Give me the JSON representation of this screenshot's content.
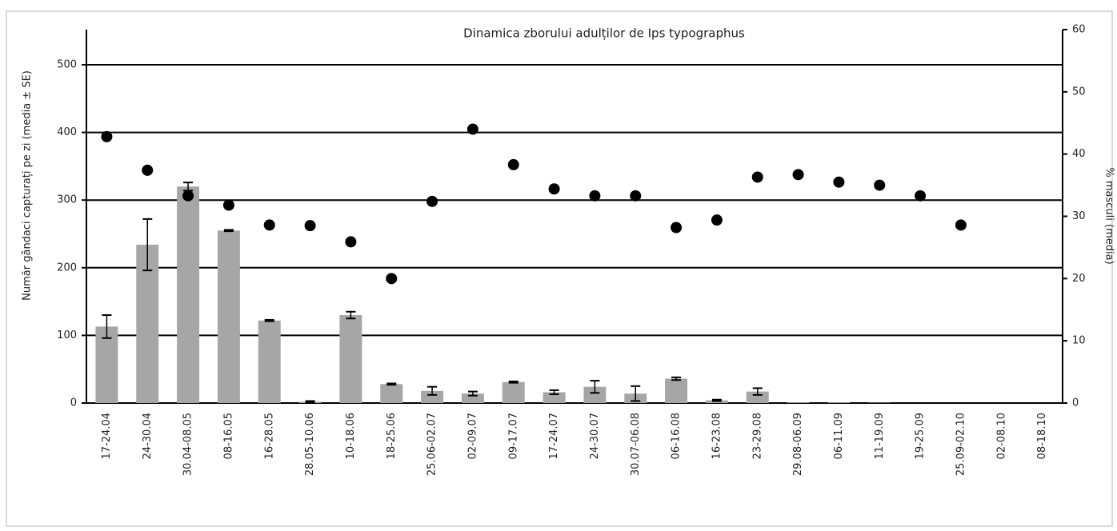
{
  "chart_data": {
    "type": "bar",
    "title": "Dinamica zborului adulților de Ips typographus",
    "y_label": "Număr gândaci capturați pe zi (media ± SE)",
    "y2_label": "% masculi (media)",
    "categories": [
      "17-24.04",
      "24-30.04",
      "30.04-08.05",
      "08-16.05",
      "16-28.05",
      "28.05-10.06",
      "10-18.06",
      "18-25.06",
      "25.06-02.07",
      "02-09.07",
      "09-17.07",
      "17-24.07",
      "24-30.07",
      "30.07-06.08",
      "06-16.08",
      "16-23.08",
      "23-29.08",
      "29.08-06.09",
      "06-11.09",
      "11-19.09",
      "19-25.09",
      "25.09-02.10",
      "02-08.10",
      "08-18.10"
    ],
    "series": [
      {
        "type": "bar",
        "color": "#a6a6a6",
        "values": [
          113,
          234,
          320,
          255,
          122,
          2,
          130,
          28,
          18,
          14,
          31,
          16,
          24,
          14,
          36,
          4,
          17,
          1,
          1,
          0.5,
          0,
          0,
          0,
          0
        ],
        "errors": [
          17,
          38,
          6,
          1,
          1,
          1,
          5,
          1,
          6,
          3,
          1,
          3,
          9,
          11,
          2,
          1,
          5,
          0,
          0,
          0,
          0,
          0,
          0,
          0
        ]
      },
      {
        "type": "scatter",
        "axis": "y2",
        "color": "#000000",
        "values": [
          42.8,
          37.4,
          33.3,
          31.8,
          28.6,
          28.5,
          25.9,
          20,
          32.4,
          44,
          38.3,
          34.4,
          33.3,
          33.3,
          28.2,
          29.4,
          36.3,
          36.7,
          35.5,
          35,
          33.3,
          28.6,
          null,
          null
        ]
      }
    ],
    "ylim": [
      0,
      552
    ],
    "yticks": [
      0,
      100,
      200,
      300,
      400,
      500
    ],
    "y2lim": [
      0,
      60
    ],
    "y2ticks": [
      0,
      10,
      20,
      30,
      40,
      50,
      60
    ],
    "grid": true
  }
}
